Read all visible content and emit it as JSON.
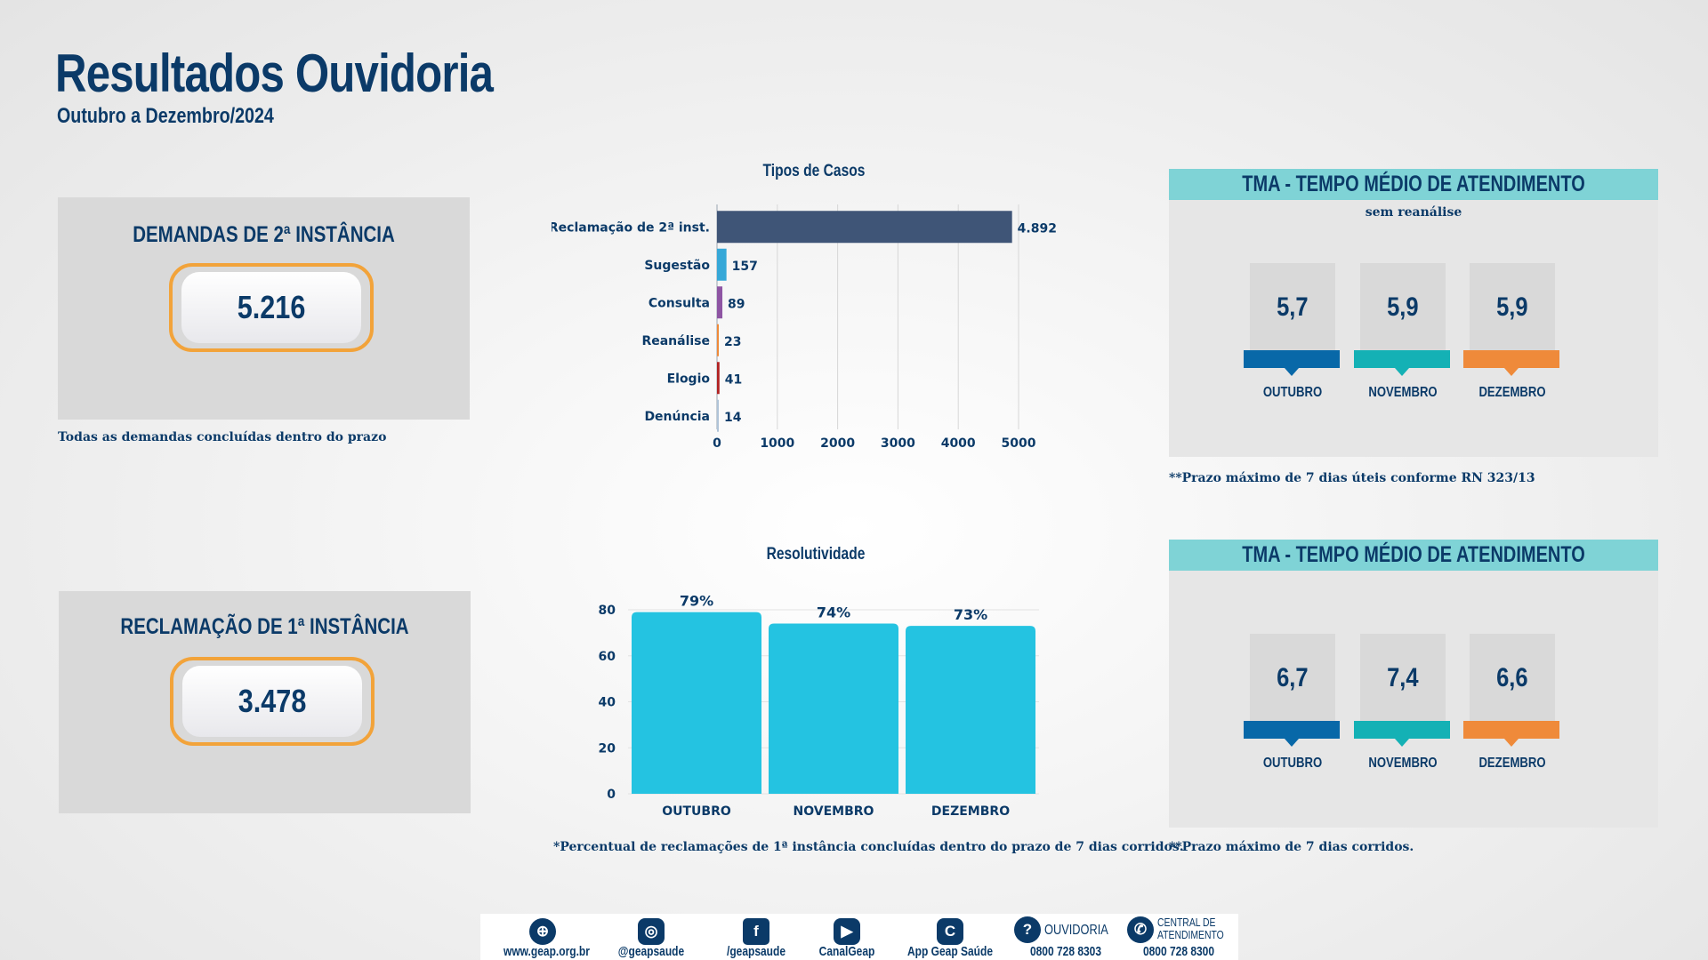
{
  "header": {
    "title": "Resultados Ouvidoria",
    "subtitle": "Outubro a Dezembro/2024"
  },
  "kpi_2a": {
    "title": "DEMANDAS DE 2ª INSTÂNCIA",
    "value": "5.216",
    "note": "Todas as demandas concluídas dentro do prazo"
  },
  "kpi_1a": {
    "title": "RECLAMAÇÃO DE 1ª INSTÂNCIA",
    "value": "3.478"
  },
  "chart_data": [
    {
      "type": "bar",
      "orientation": "horizontal",
      "title": "Tipos de Casos",
      "categories": [
        "Reclamação de 2ª inst.",
        "Sugestão",
        "Consulta",
        "Reanálise",
        "Elogio",
        "Denúncia"
      ],
      "values": [
        4892,
        157,
        89,
        23,
        41,
        14
      ],
      "value_labels": [
        "4.892",
        "157",
        "89",
        "23",
        "41",
        "14"
      ],
      "colors": [
        "#3f5577",
        "#36a8d8",
        "#8e55a3",
        "#ef8a3a",
        "#b22222",
        "#b0c4d8"
      ],
      "xlim": [
        0,
        5000
      ],
      "xticks": [
        0,
        1000,
        2000,
        3000,
        4000,
        5000
      ],
      "grid": true
    },
    {
      "type": "bar",
      "title": "Resolutividade",
      "categories": [
        "OUTUBRO",
        "NOVEMBRO",
        "DEZEMBRO"
      ],
      "values": [
        79,
        74,
        73
      ],
      "value_labels": [
        "79%",
        "74%",
        "73%"
      ],
      "color": "#24c3e1",
      "ylim": [
        0,
        80
      ],
      "yticks": [
        0,
        20,
        40,
        60,
        80
      ],
      "grid": true,
      "note": "*Percentual de reclamações de 1ª instância concluídas dentro do prazo de 7 dias corridos."
    }
  ],
  "tma_top": {
    "title": "TMA - TEMPO MÉDIO DE ATENDIMENTO",
    "subtitle": "sem reanálise",
    "note": "**Prazo máximo de 7 dias úteis conforme RN 323/13",
    "items": [
      {
        "month": "OUTUBRO",
        "value": "5,7",
        "color": "#0868a8"
      },
      {
        "month": "NOVEMBRO",
        "value": "5,9",
        "color": "#14b1b5"
      },
      {
        "month": "DEZEMBRO",
        "value": "5,9",
        "color": "#ef8a3a"
      }
    ]
  },
  "tma_bottom": {
    "title": "TMA - TEMPO MÉDIO DE ATENDIMENTO",
    "note": "**Prazo máximo de 7 dias corridos.",
    "items": [
      {
        "month": "OUTUBRO",
        "value": "6,7",
        "color": "#0868a8"
      },
      {
        "month": "NOVEMBRO",
        "value": "7,4",
        "color": "#14b1b5"
      },
      {
        "month": "DEZEMBRO",
        "value": "6,6",
        "color": "#ef8a3a"
      }
    ]
  },
  "footer": {
    "site": "www.geap.org.br",
    "instagram": "@geapsaude",
    "facebook": "/geapsaude",
    "youtube": "CanalGeap",
    "app": "App Geap Saúde",
    "ouvidoria_label": "OUVIDORIA",
    "ouvidoria_phone": "0800 728 8303",
    "central_label_1": "CENTRAL DE",
    "central_label_2": "ATENDIMENTO",
    "central_phone": "0800 728 8300",
    "icons": [
      "globe-icon",
      "instagram-icon",
      "facebook-icon",
      "youtube-icon",
      "app-icon",
      "ear-icon",
      "phone-icon"
    ]
  }
}
